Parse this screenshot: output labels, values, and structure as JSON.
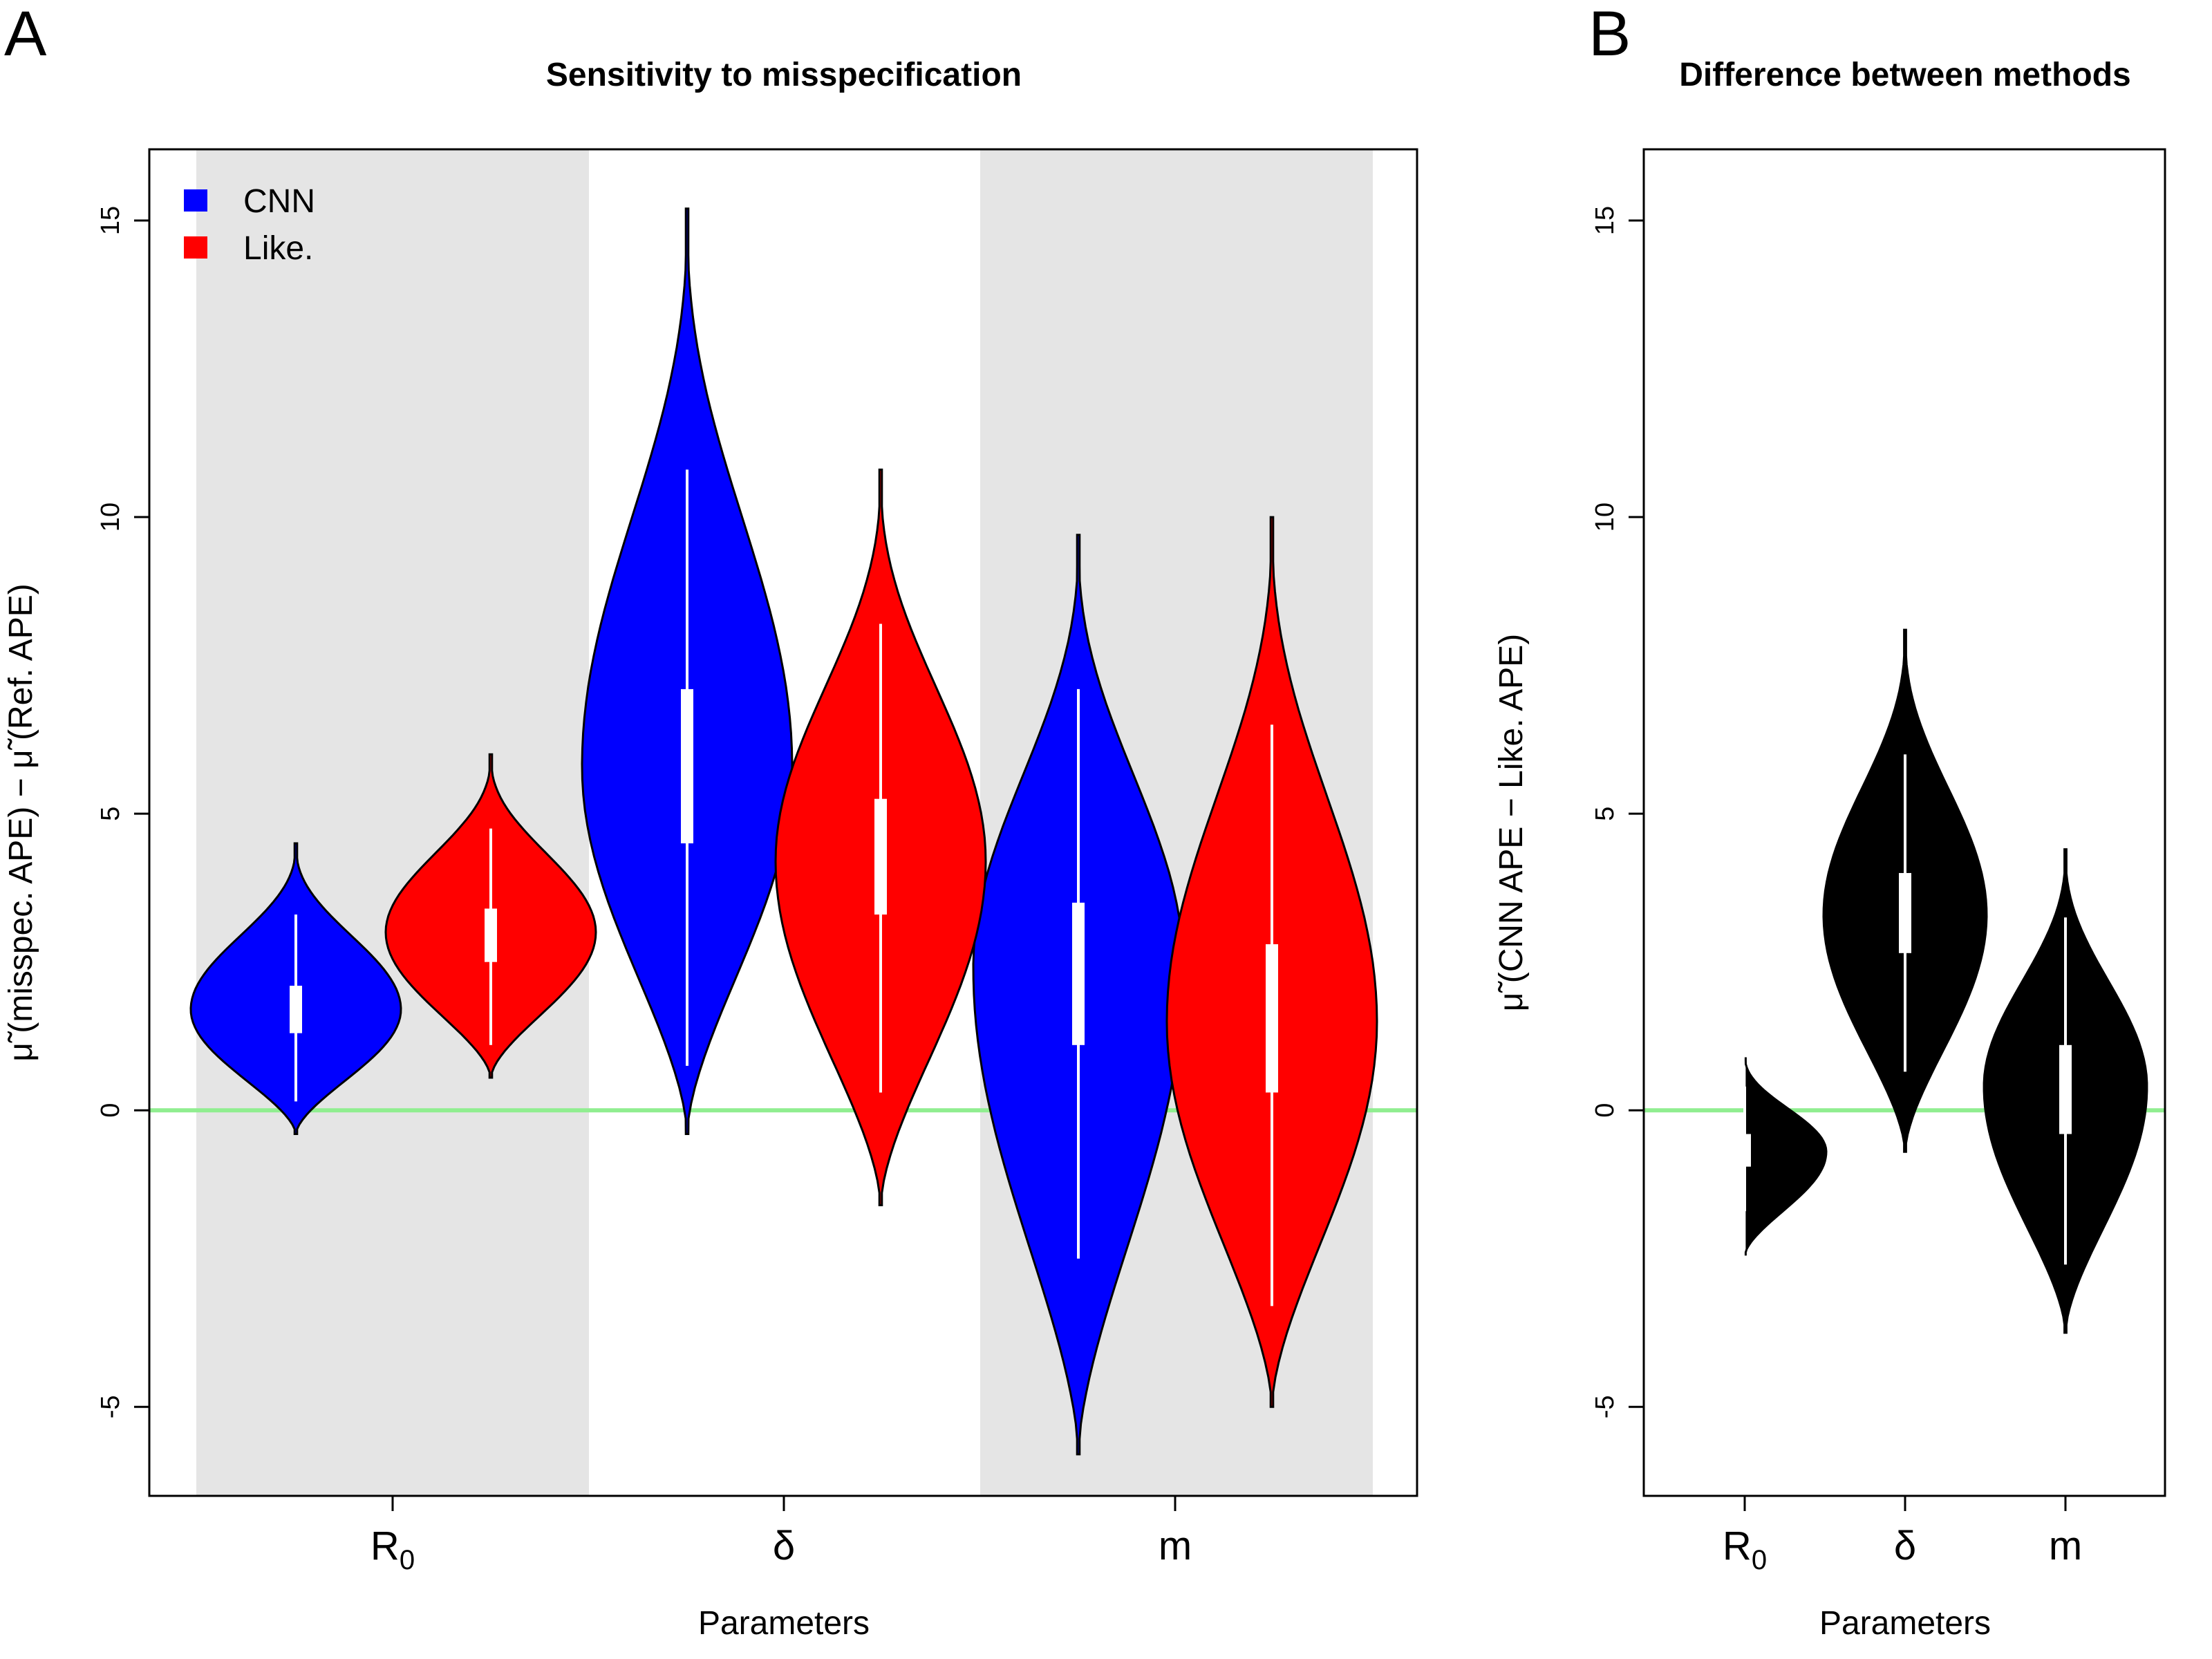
{
  "figure": {
    "panel_letters": [
      "A",
      "B"
    ]
  },
  "chart_data": [
    {
      "type": "violin",
      "panel": "A",
      "title": "Sensitivity to misspecification",
      "xlabel": "Parameters",
      "ylabel": "μ̃ (misspec. APE) − μ̃ (Ref. APE)",
      "categories": [
        "R0",
        "δ",
        "m"
      ],
      "category_labels": [
        {
          "main": "R",
          "sub": "0"
        },
        {
          "main": "δ",
          "sub": ""
        },
        {
          "main": "m",
          "sub": ""
        }
      ],
      "ylim": [
        -6.5,
        16.2
      ],
      "yticks": [
        -5,
        0,
        5,
        10,
        15
      ],
      "ytick_labels": [
        "-5",
        "0",
        "5",
        "10",
        "15"
      ],
      "reference_line": {
        "y": 0,
        "color": "#90ee90"
      },
      "shaded_categories": [
        "R0",
        "m"
      ],
      "shade_color": "#e5e5e5",
      "legend": {
        "position": "top-left",
        "items": [
          {
            "label": "CNN",
            "color": "#0000ff"
          },
          {
            "label": "Like.",
            "color": "#ff0000"
          }
        ]
      },
      "series": [
        {
          "name": "CNN",
          "color": "#0000ff",
          "violins": [
            {
              "category": "R0",
              "min": -0.4,
              "max": 4.5,
              "mode": 1.7,
              "half_width": 0.2,
              "whisker_low": 0.15,
              "whisker_high": 3.3,
              "q1": 1.3,
              "q3": 2.1,
              "median": 1.7
            },
            {
              "category": "δ",
              "min": -0.4,
              "max": 15.2,
              "mode": 5.8,
              "half_width": 0.2,
              "whisker_low": 0.75,
              "whisker_high": 10.8,
              "q1": 4.5,
              "q3": 7.1,
              "median": 5.8
            },
            {
              "category": "m",
              "min": -5.8,
              "max": 9.7,
              "mode": 2.4,
              "half_width": 0.2,
              "whisker_low": -2.5,
              "whisker_high": 7.1,
              "q1": 1.1,
              "q3": 3.5,
              "median": 2.3
            }
          ]
        },
        {
          "name": "Like.",
          "color": "#ff0000",
          "violins": [
            {
              "category": "R0",
              "min": 0.55,
              "max": 6.0,
              "mode": 3.0,
              "half_width": 0.2,
              "whisker_low": 1.1,
              "whisker_high": 4.75,
              "q1": 2.5,
              "q3": 3.4,
              "median": 3.0
            },
            {
              "category": "δ",
              "min": -1.6,
              "max": 10.8,
              "mode": 4.2,
              "half_width": 0.2,
              "whisker_low": 0.3,
              "whisker_high": 8.2,
              "q1": 3.3,
              "q3": 5.25,
              "median": 4.2
            },
            {
              "category": "m",
              "min": -5.0,
              "max": 10.0,
              "mode": 1.5,
              "half_width": 0.2,
              "whisker_low": -3.3,
              "whisker_high": 6.5,
              "q1": 0.3,
              "q3": 2.8,
              "median": 1.5
            }
          ]
        }
      ]
    },
    {
      "type": "violin",
      "panel": "B",
      "title": "Difference between methods",
      "xlabel": "Parameters",
      "ylabel": "μ̃ (CNN APE − Like. APE)",
      "categories": [
        "R0",
        "δ",
        "m"
      ],
      "category_labels": [
        {
          "main": "R",
          "sub": "0"
        },
        {
          "main": "δ",
          "sub": ""
        },
        {
          "main": "m",
          "sub": ""
        }
      ],
      "ylim": [
        -6.5,
        16.2
      ],
      "yticks": [
        -5,
        0,
        5,
        10,
        15
      ],
      "ytick_labels": [
        "-5",
        "0",
        "5",
        "10",
        "15"
      ],
      "reference_line": {
        "y": 0,
        "color": "#90ee90"
      },
      "series": [
        {
          "name": "CNN − Like.",
          "color": "#000000",
          "violins": [
            {
              "category": "R0",
              "min": -2.45,
              "max": 0.95,
              "mode": -0.7,
              "half_width": 0.4,
              "whisker_low": -1.7,
              "whisker_high": 0.4,
              "q1": -0.95,
              "q3": -0.4,
              "median": -0.7
            },
            {
              "category": "δ",
              "min": -0.7,
              "max": 8.1,
              "mode": 3.3,
              "half_width": 0.4,
              "whisker_low": 0.65,
              "whisker_high": 6.0,
              "q1": 2.65,
              "q3": 4.0,
              "median": 3.3
            },
            {
              "category": "m",
              "min": -3.75,
              "max": 4.4,
              "mode": 0.4,
              "half_width": 0.4,
              "whisker_low": -2.6,
              "whisker_high": 3.25,
              "q1": -0.4,
              "q3": 1.1,
              "median": 0.4
            }
          ]
        }
      ]
    }
  ]
}
